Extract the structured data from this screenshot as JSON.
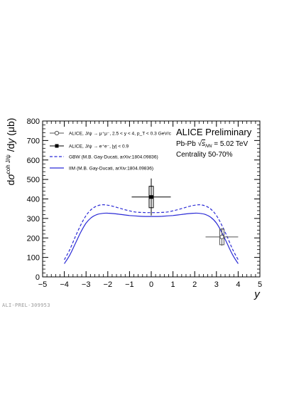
{
  "watermark_id": "ALI-PREL-309953",
  "colors": {
    "axis": "#000000",
    "gbw": "#2b2bd6",
    "iim": "#2b2bd6",
    "data_fwd": "#555555",
    "data_mid": "#000000",
    "background": "#ffffff"
  },
  "chart_data": {
    "type": "line",
    "title": "ALICE Preliminary",
    "annotations": [
      "Pb-Pb √s_NN = 5.02 TeV",
      "Centrality 50-70%"
    ],
    "xlabel": "y",
    "ylabel": "dσ^coh J/ψ /dy (μb)",
    "xlim": [
      -5,
      5
    ],
    "ylim": [
      0,
      800
    ],
    "x_ticks": [
      "−5",
      "−4",
      "−3",
      "−2",
      "−1",
      "0",
      "1",
      "2",
      "3",
      "4",
      "5"
    ],
    "y_ticks": [
      "0",
      "100",
      "200",
      "300",
      "400",
      "500",
      "600",
      "700",
      "800"
    ],
    "legend_position": "top-left",
    "legend": [
      {
        "label": "ALICE, J/ψ → μ⁺μ⁻, 2.5 < y < 4, p_T < 0.3 GeV/c",
        "style": "open-circle"
      },
      {
        "label": "ALICE, J/ψ → e⁺e⁻, |y| < 0.9",
        "style": "filled-square"
      },
      {
        "label": "GBW (M.B. Gay-Ducati, arXiv:1804.09836)",
        "style": "dashed-line"
      },
      {
        "label": "IIM (M.B. Gay-Ducati, arXiv:1804.09836)",
        "style": "solid-line"
      }
    ],
    "points": [
      {
        "name": "ALICE, J/ψ → e⁺e⁻, |y| < 0.9",
        "x": 0.0,
        "y": 410,
        "x_err": 0.9,
        "stat_err": 95,
        "syst_err": 55
      },
      {
        "name": "ALICE, J/ψ → μ⁺μ⁻, 2.5 < y < 4, p_T < 0.3 GeV/c",
        "x": 3.25,
        "y": 205,
        "x_err": 0.75,
        "stat_err": 45,
        "syst_err": 40
      }
    ],
    "series": [
      {
        "name": "GBW (M.B. Gay-Ducati, arXiv:1804.09836)",
        "x": [
          -4.0,
          -3.75,
          -3.5,
          -3.25,
          -3.0,
          -2.75,
          -2.5,
          -2.25,
          -2.0,
          -1.75,
          -1.5,
          -1.25,
          -1.0,
          -0.75,
          -0.5,
          -0.25,
          0.0,
          0.25,
          0.5,
          0.75,
          1.0,
          1.25,
          1.5,
          1.75,
          2.0,
          2.25,
          2.5,
          2.75,
          3.0,
          3.25,
          3.5,
          3.75,
          4.0
        ],
        "y": [
          88,
          140,
          205,
          265,
          315,
          347,
          364,
          370,
          368,
          362,
          354,
          346,
          339,
          333,
          331,
          330,
          330,
          330,
          331,
          333,
          339,
          346,
          354,
          362,
          368,
          370,
          364,
          347,
          315,
          265,
          205,
          140,
          88
        ]
      },
      {
        "name": "IIM (M.B. Gay-Ducati, arXiv:1804.09836)",
        "x": [
          -4.0,
          -3.75,
          -3.5,
          -3.25,
          -3.0,
          -2.75,
          -2.5,
          -2.25,
          -2.0,
          -1.75,
          -1.5,
          -1.25,
          -1.0,
          -0.75,
          -0.5,
          -0.25,
          0.0,
          0.25,
          0.5,
          0.75,
          1.0,
          1.25,
          1.5,
          1.75,
          2.0,
          2.25,
          2.5,
          2.75,
          3.0,
          3.25,
          3.5,
          3.75,
          4.0
        ],
        "y": [
          68,
          112,
          170,
          228,
          276,
          305,
          320,
          326,
          327,
          325,
          322,
          318,
          315,
          313,
          311,
          310,
          310,
          310,
          311,
          313,
          315,
          318,
          322,
          325,
          327,
          326,
          320,
          305,
          276,
          228,
          170,
          112,
          68
        ]
      }
    ]
  }
}
